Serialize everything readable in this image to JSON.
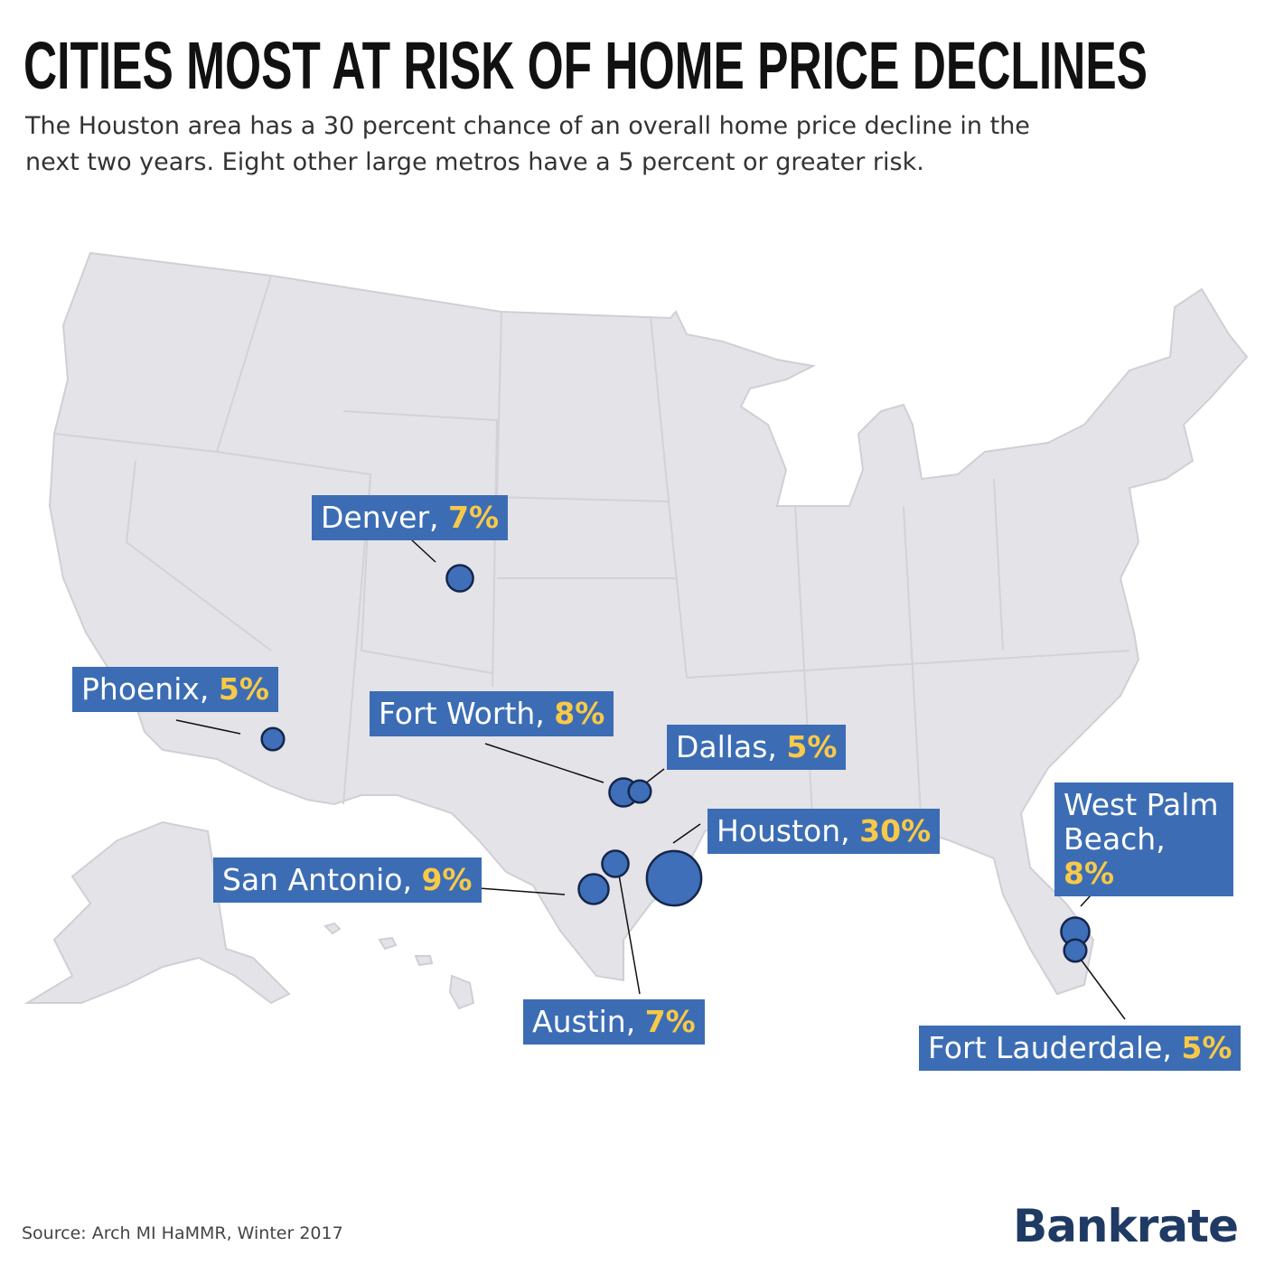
{
  "title": "CITIES MOST AT RISK OF HOME PRICE DECLINES",
  "subtitle": "The Houston area has a 30 percent chance of an overall home price decline in the next two years. Eight other large metros have a 5 percent or greater risk.",
  "cities": [
    {
      "name": "Denver,",
      "value": 7,
      "value_label": "7%"
    },
    {
      "name": "Phoenix,",
      "value": 5,
      "value_label": "5%"
    },
    {
      "name": "Fort Worth,",
      "value": 8,
      "value_label": "8%"
    },
    {
      "name": "Dallas,",
      "value": 5,
      "value_label": "5%"
    },
    {
      "name": "Houston,",
      "value": 30,
      "value_label": "30%"
    },
    {
      "name": "San Antonio,",
      "value": 9,
      "value_label": "9%"
    },
    {
      "name": "Austin,",
      "value": 7,
      "value_label": "7%"
    },
    {
      "name": "West Palm Beach,",
      "value": 8,
      "value_label": "8%"
    },
    {
      "name": "Fort Lauderdale,",
      "value": 5,
      "value_label": "5%"
    }
  ],
  "source": "Source: Arch MI HaMMR, Winter 2017",
  "logo": "Bankrate"
}
